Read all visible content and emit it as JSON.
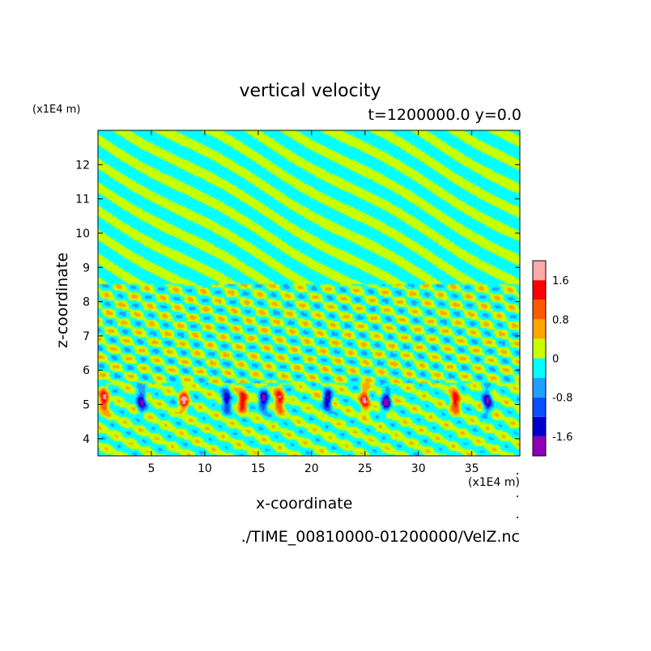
{
  "chart_data": {
    "type": "heatmap",
    "title": "vertical velocity",
    "subtitle": "t=1200000.0 y=0.0",
    "xlabel": "x-coordinate",
    "ylabel": "z-coordinate",
    "x_unit": "(x1E4 m)",
    "y_unit": "(x1E4 m)",
    "xlim": [
      0,
      39.5
    ],
    "ylim": [
      3.5,
      13
    ],
    "x_ticks": [
      5,
      10,
      15,
      20,
      25,
      30,
      35
    ],
    "y_ticks": [
      4,
      5,
      6,
      7,
      8,
      9,
      10,
      11,
      12
    ],
    "colorbar": {
      "levels": [
        -2.0,
        -1.6,
        -1.2,
        -0.8,
        -0.4,
        0,
        0.4,
        0.8,
        1.2,
        1.6,
        2.0
      ],
      "colors": [
        "#8f00b8",
        "#0000cc",
        "#0a50ff",
        "#1ea0ff",
        "#00ffff",
        "#c8ff00",
        "#ffa500",
        "#ff5a00",
        "#ff0000",
        "#ffaaaa"
      ],
      "tick_labels": [
        "1.6",
        "0.8",
        "0",
        "-0.8",
        "-1.6"
      ],
      "tick_values": [
        1.6,
        0.8,
        0,
        -0.8,
        -1.6
      ]
    },
    "features": {
      "wave_layer_z": [
        5.6,
        8.5
      ],
      "strong_eddy_band_z": [
        4.6,
        5.7
      ],
      "strong_eddy_x_centers": [
        0.5,
        4,
        8,
        12,
        13.5,
        15.5,
        17,
        21.5,
        25,
        27,
        33.5,
        36.5
      ],
      "upper_region_z": [
        8.5,
        13
      ]
    }
  },
  "footer": {
    "filename": "./TIME_00810000-01200000/VelZ.nc"
  }
}
